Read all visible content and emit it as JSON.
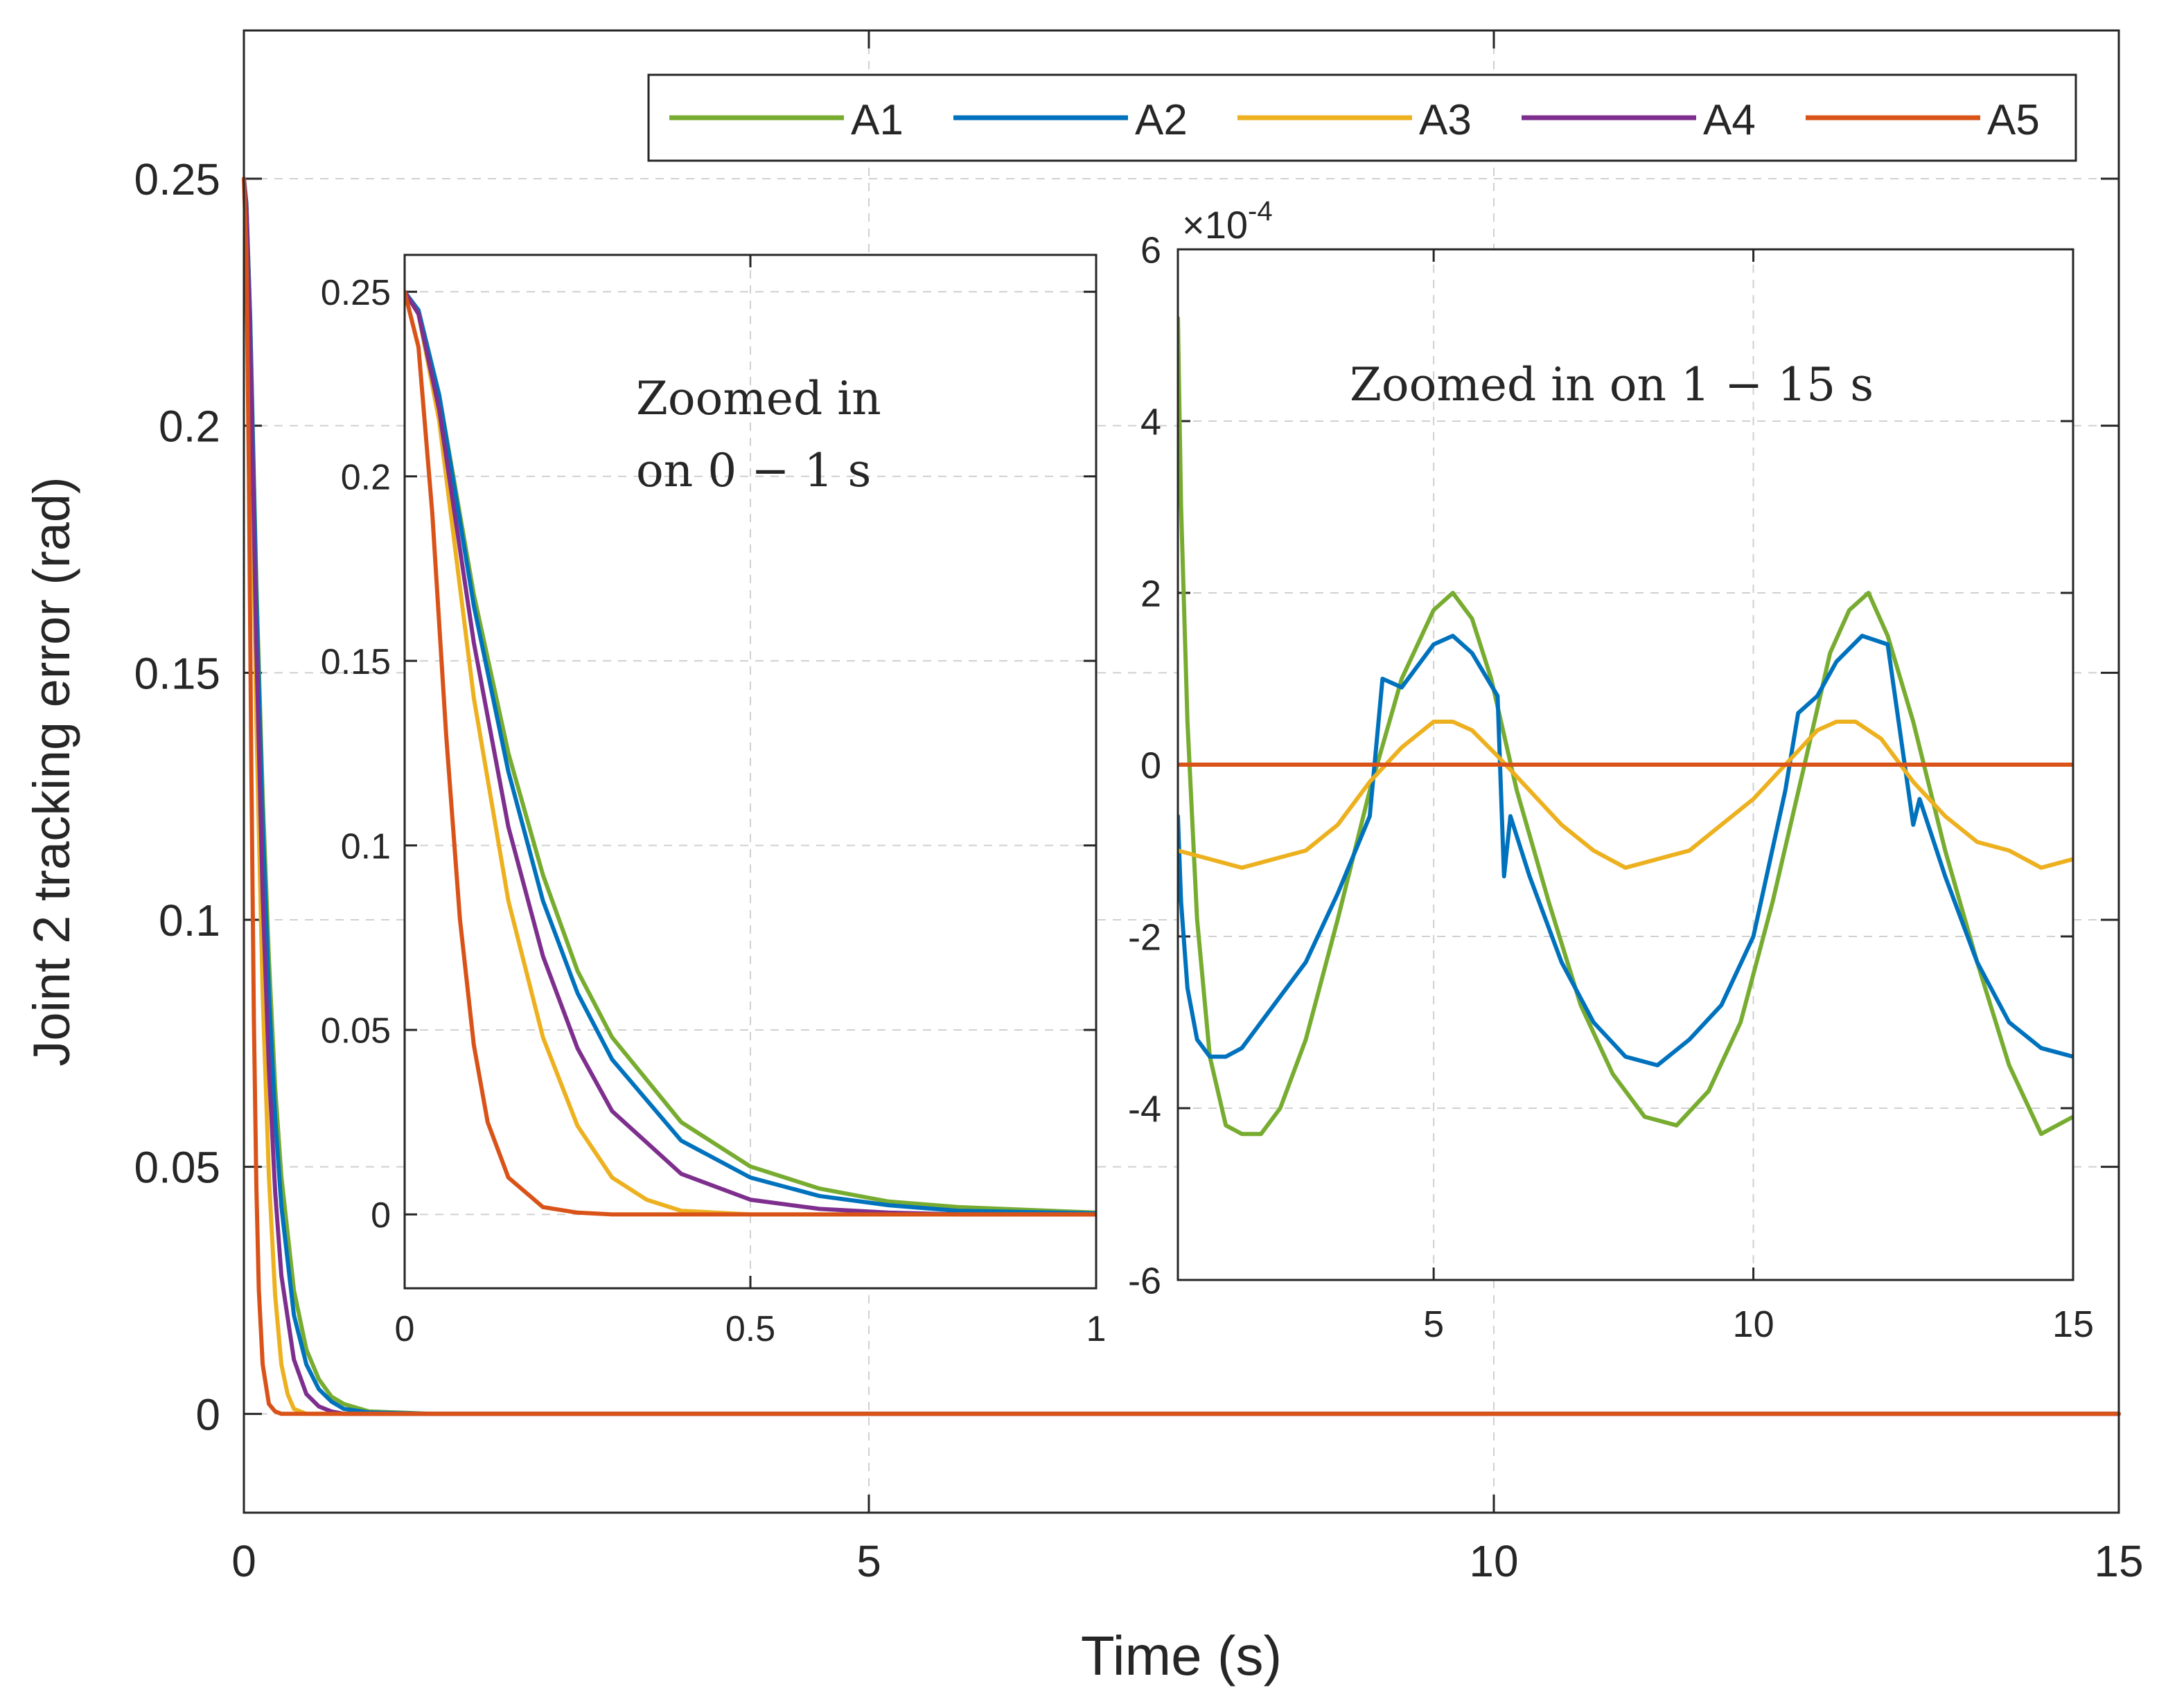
{
  "chart_data": [
    {
      "name": "main",
      "type": "line",
      "xlabel": "Time (s)",
      "ylabel": "Joint 2 tracking error (rad)",
      "xlim": [
        0,
        15
      ],
      "ylim": [
        -0.02,
        0.28
      ],
      "xticks": [
        0,
        5,
        10,
        15
      ],
      "xtick_labels": [
        "0",
        "5",
        "10",
        "15"
      ],
      "yticks": [
        0,
        0.05,
        0.1,
        0.15,
        0.2,
        0.25
      ],
      "ytick_labels": [
        "0",
        "0.05",
        "0.1",
        "0.15",
        "0.2",
        "0.25"
      ],
      "grid": true,
      "legend": {
        "position": "top-right",
        "orientation": "horizontal",
        "entries": [
          "A1",
          "A2",
          "A3",
          "A4",
          "A5"
        ]
      },
      "series": [
        {
          "name": "A1",
          "color": "#77ac30",
          "x": [
            0,
            0.02,
            0.05,
            0.1,
            0.15,
            0.2,
            0.25,
            0.3,
            0.4,
            0.5,
            0.6,
            0.7,
            0.8,
            1.0,
            1.5,
            15
          ],
          "values": [
            0.25,
            0.245,
            0.222,
            0.168,
            0.125,
            0.092,
            0.066,
            0.048,
            0.025,
            0.013,
            0.007,
            0.0035,
            0.002,
            0.0005,
            0,
            0
          ]
        },
        {
          "name": "A2",
          "color": "#0072bd",
          "x": [
            0,
            0.02,
            0.05,
            0.1,
            0.15,
            0.2,
            0.25,
            0.3,
            0.4,
            0.5,
            0.6,
            0.7,
            0.8,
            1.0,
            1.5,
            15
          ],
          "values": [
            0.25,
            0.245,
            0.222,
            0.165,
            0.12,
            0.085,
            0.06,
            0.042,
            0.02,
            0.01,
            0.005,
            0.0025,
            0.001,
            0.0003,
            0,
            0
          ]
        },
        {
          "name": "A3",
          "color": "#edb120",
          "x": [
            0,
            0.02,
            0.05,
            0.1,
            0.15,
            0.2,
            0.25,
            0.3,
            0.35,
            0.4,
            0.5,
            0.6,
            1.0,
            15
          ],
          "values": [
            0.25,
            0.244,
            0.215,
            0.14,
            0.085,
            0.048,
            0.024,
            0.01,
            0.004,
            0.001,
            0,
            0,
            0,
            0
          ]
        },
        {
          "name": "A4",
          "color": "#7e2f8e",
          "x": [
            0,
            0.02,
            0.05,
            0.1,
            0.15,
            0.2,
            0.25,
            0.3,
            0.4,
            0.5,
            0.6,
            0.7,
            0.8,
            1.0,
            15
          ],
          "values": [
            0.25,
            0.244,
            0.218,
            0.155,
            0.105,
            0.07,
            0.045,
            0.028,
            0.011,
            0.004,
            0.0015,
            0.0005,
            0,
            0,
            0
          ]
        },
        {
          "name": "A5",
          "color": "#d95319",
          "x": [
            0,
            0.02,
            0.04,
            0.06,
            0.08,
            0.1,
            0.12,
            0.15,
            0.2,
            0.25,
            0.3,
            0.5,
            15
          ],
          "values": [
            0.25,
            0.235,
            0.19,
            0.13,
            0.08,
            0.046,
            0.025,
            0.01,
            0.002,
            0.0005,
            0,
            0,
            0
          ]
        }
      ]
    },
    {
      "name": "inset_left",
      "type": "line",
      "annotation": [
        "Zoomed in",
        "on 0 − 1 s"
      ],
      "xlim": [
        0,
        1
      ],
      "ylim": [
        -0.02,
        0.26
      ],
      "xticks": [
        0,
        0.5,
        1
      ],
      "xtick_labels": [
        "0",
        "0.5",
        "1"
      ],
      "yticks": [
        0,
        0.05,
        0.1,
        0.15,
        0.2,
        0.25
      ],
      "ytick_labels": [
        "0",
        "0.05",
        "0.1",
        "0.15",
        "0.2",
        "0.25"
      ],
      "grid": true,
      "series_ref": "main"
    },
    {
      "name": "inset_right",
      "type": "line",
      "annotation": "Zoomed in on 1 − 15 s",
      "exponent_label": "×10",
      "exponent_power": "-4",
      "xlim": [
        1,
        15
      ],
      "ylim": [
        -6,
        6
      ],
      "xticks": [
        5,
        10,
        15
      ],
      "xtick_labels": [
        "5",
        "10",
        "15"
      ],
      "yticks": [
        -6,
        -4,
        -2,
        0,
        2,
        4,
        6
      ],
      "ytick_labels": [
        "-6",
        "-4",
        "-2",
        "0",
        "2",
        "4",
        "6"
      ],
      "grid": true,
      "series": [
        {
          "name": "A1",
          "color": "#77ac30",
          "x": [
            1.0,
            1.05,
            1.15,
            1.3,
            1.5,
            1.75,
            2.0,
            2.3,
            2.6,
            3.0,
            3.5,
            4.0,
            4.5,
            5.0,
            5.3,
            5.6,
            5.9,
            6.3,
            6.8,
            7.3,
            7.8,
            8.3,
            8.8,
            9.3,
            9.8,
            10.3,
            10.8,
            11.2,
            11.5,
            11.8,
            12.1,
            12.5,
            13.0,
            13.5,
            14.0,
            14.5,
            15.0
          ],
          "values": [
            5.2,
            3.0,
            0.5,
            -1.8,
            -3.4,
            -4.2,
            -4.3,
            -4.3,
            -4.0,
            -3.2,
            -1.8,
            -0.3,
            1.0,
            1.8,
            2.0,
            1.7,
            1.0,
            -0.3,
            -1.6,
            -2.8,
            -3.6,
            -4.1,
            -4.2,
            -3.8,
            -3.0,
            -1.6,
            0.0,
            1.3,
            1.8,
            2.0,
            1.5,
            0.5,
            -1.0,
            -2.3,
            -3.5,
            -4.3,
            -4.1
          ]
        },
        {
          "name": "A2",
          "color": "#0072bd",
          "x": [
            1.0,
            1.05,
            1.15,
            1.3,
            1.5,
            1.75,
            2.0,
            2.5,
            3.0,
            3.5,
            4.0,
            4.2,
            4.5,
            5.0,
            5.3,
            5.6,
            6.0,
            6.1,
            6.2,
            6.5,
            7.0,
            7.5,
            8.0,
            8.5,
            9.0,
            9.5,
            10.0,
            10.5,
            10.7,
            11.0,
            11.3,
            11.7,
            12.1,
            12.5,
            12.6,
            13.0,
            13.5,
            14.0,
            14.5,
            15.0
          ],
          "values": [
            -0.6,
            -1.6,
            -2.6,
            -3.2,
            -3.4,
            -3.4,
            -3.3,
            -2.8,
            -2.3,
            -1.5,
            -0.6,
            1.0,
            0.9,
            1.4,
            1.5,
            1.3,
            0.8,
            -1.3,
            -0.6,
            -1.3,
            -2.3,
            -3.0,
            -3.4,
            -3.5,
            -3.2,
            -2.8,
            -2.0,
            -0.3,
            0.6,
            0.8,
            1.2,
            1.5,
            1.4,
            -0.7,
            -0.4,
            -1.3,
            -2.3,
            -3.0,
            -3.3,
            -3.4
          ]
        },
        {
          "name": "A3",
          "color": "#edb120",
          "x": [
            1.0,
            1.5,
            2.0,
            2.5,
            3.0,
            3.5,
            4.0,
            4.5,
            5.0,
            5.3,
            5.6,
            6.0,
            6.5,
            7.0,
            7.5,
            8.0,
            8.5,
            9.0,
            9.5,
            10.0,
            10.5,
            11.0,
            11.3,
            11.6,
            12.0,
            12.5,
            13.0,
            13.5,
            14.0,
            14.5,
            15.0
          ],
          "values": [
            -1.0,
            -1.1,
            -1.2,
            -1.1,
            -1.0,
            -0.7,
            -0.2,
            0.2,
            0.5,
            0.5,
            0.4,
            0.1,
            -0.3,
            -0.7,
            -1.0,
            -1.2,
            -1.1,
            -1.0,
            -0.7,
            -0.4,
            0.0,
            0.4,
            0.5,
            0.5,
            0.3,
            -0.2,
            -0.6,
            -0.9,
            -1.0,
            -1.2,
            -1.1
          ]
        },
        {
          "name": "A4",
          "color": "#7e2f8e",
          "x": [
            1,
            15
          ],
          "values": [
            0,
            0
          ]
        },
        {
          "name": "A5",
          "color": "#d95319",
          "x": [
            1,
            15
          ],
          "values": [
            0,
            0
          ]
        }
      ]
    }
  ]
}
